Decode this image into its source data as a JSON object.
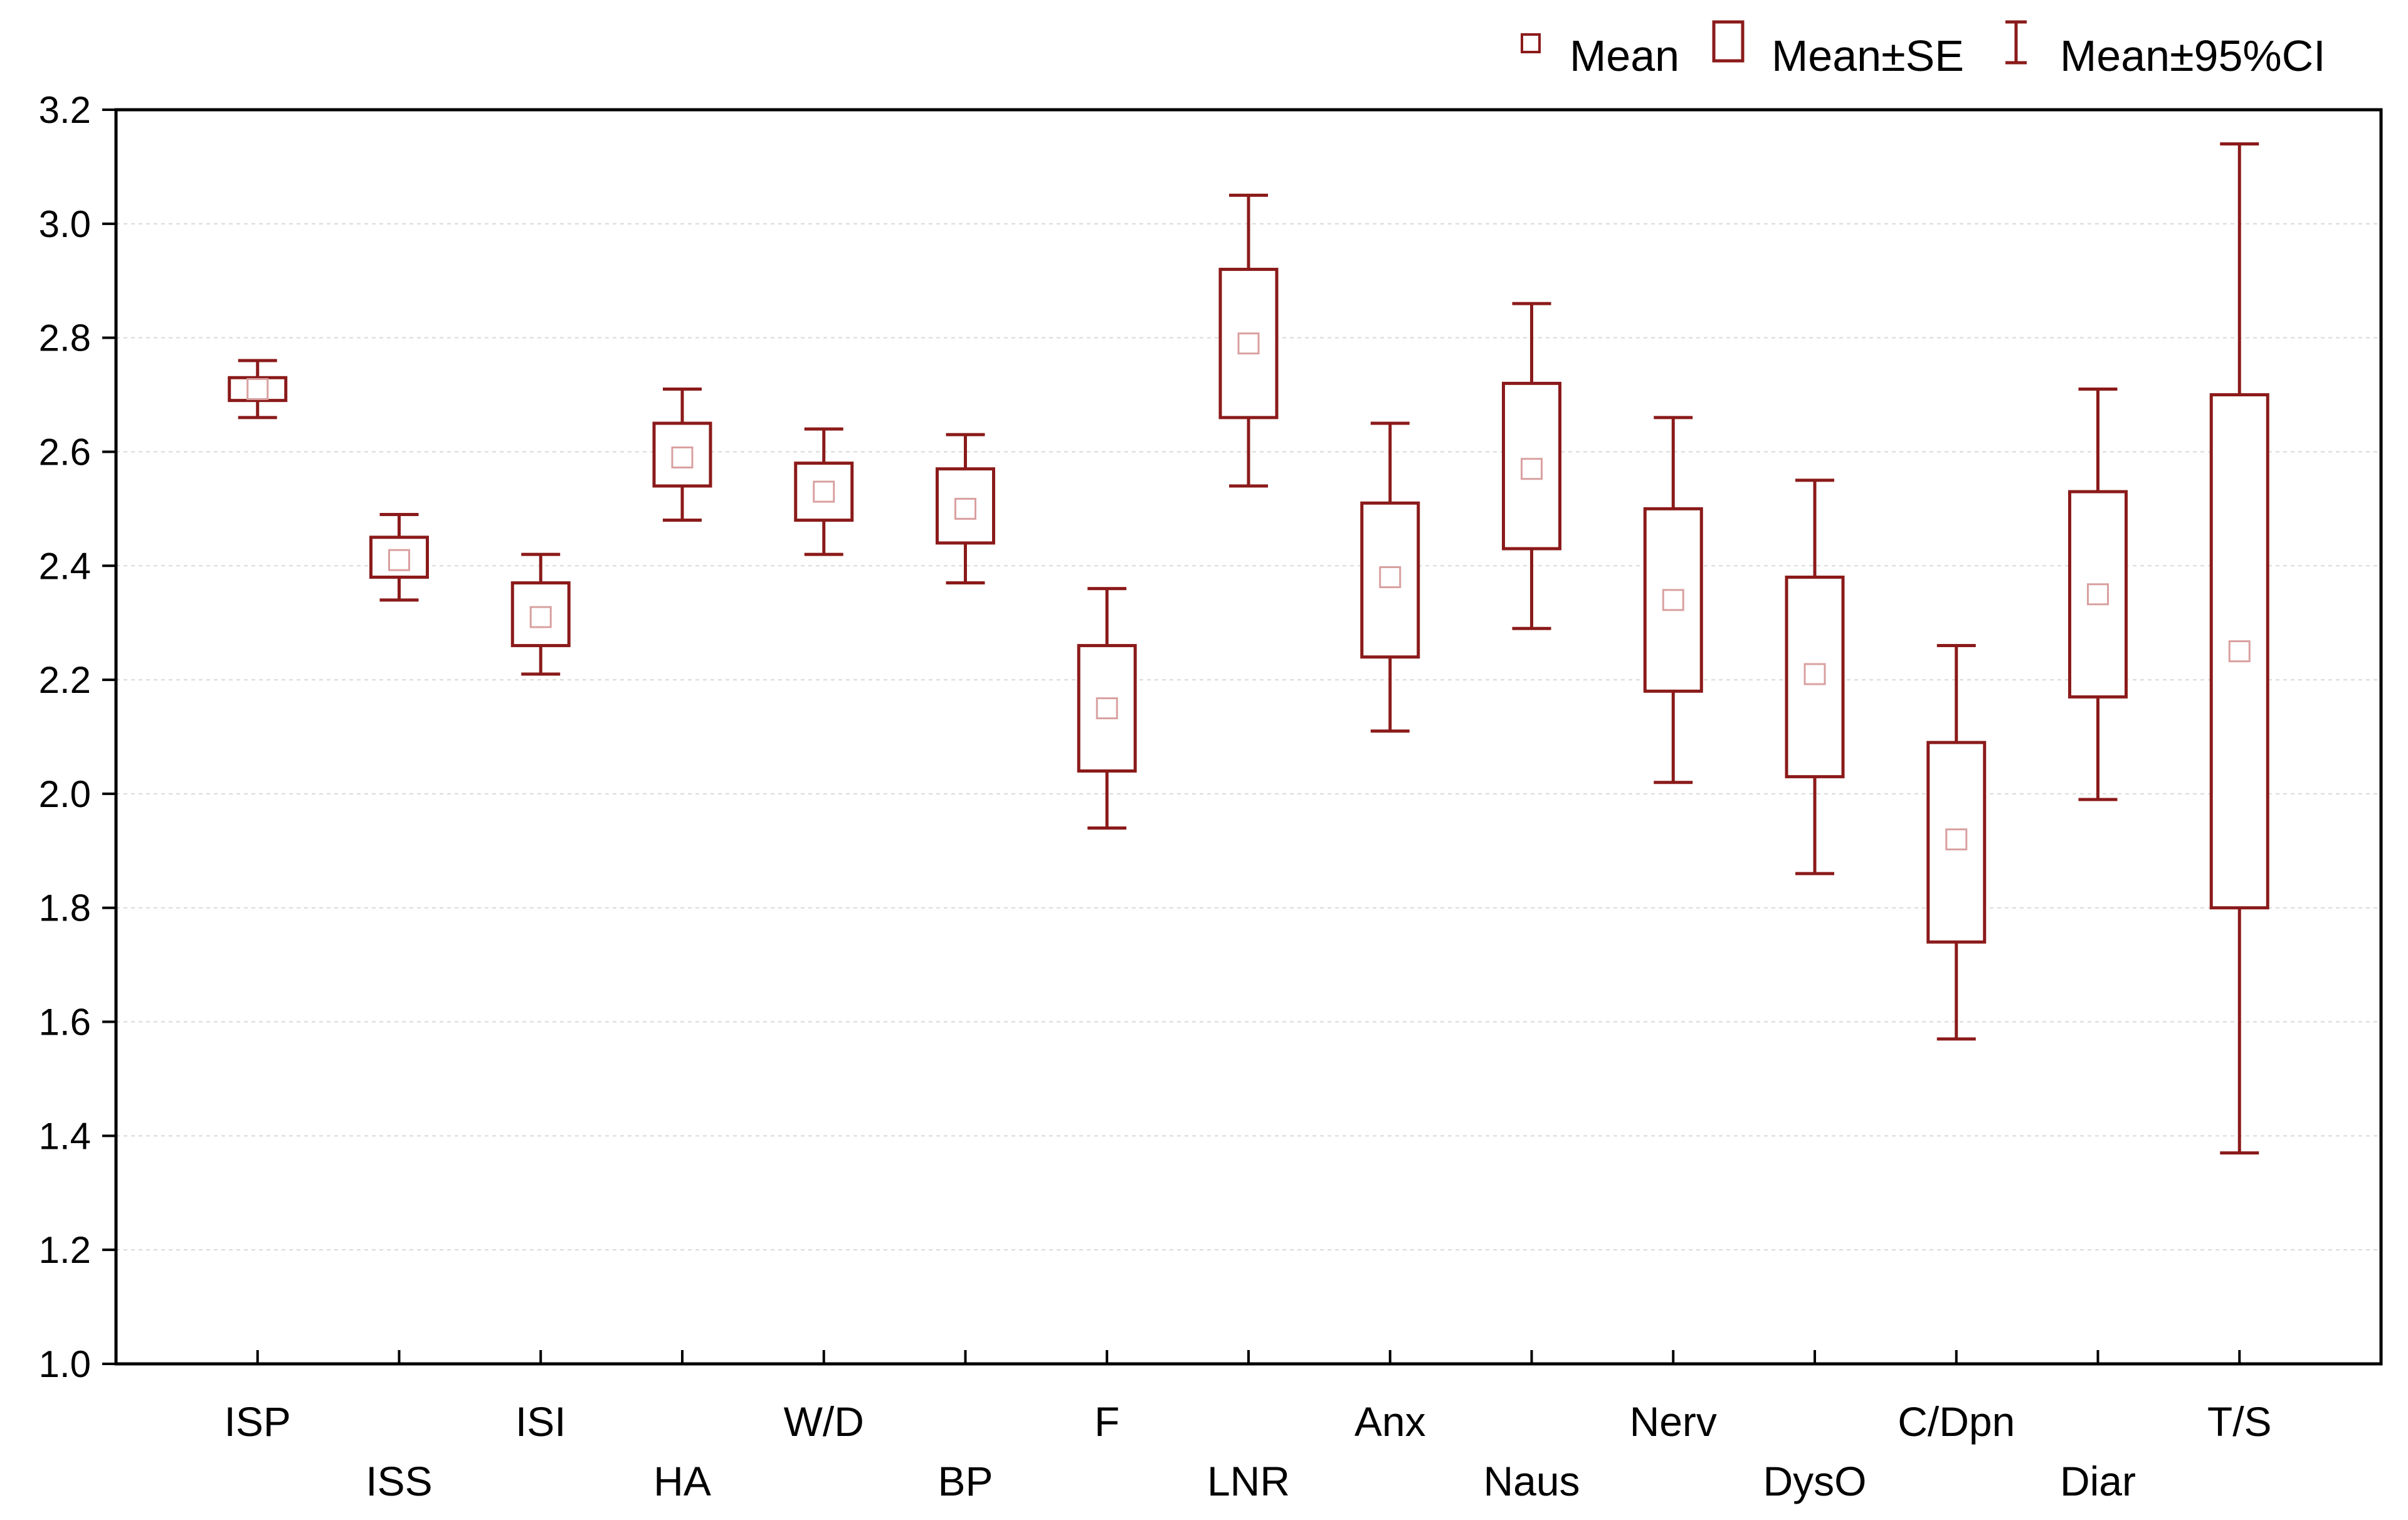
{
  "chart_data": {
    "type": "box",
    "title": "",
    "xlabel": "",
    "ylabel": "",
    "ylim": [
      1.0,
      3.2
    ],
    "yticks": [
      "1.0",
      "1.2",
      "1.4",
      "1.6",
      "1.8",
      "2.0",
      "2.2",
      "2.4",
      "2.6",
      "2.8",
      "3.0",
      "3.2"
    ],
    "grid": true,
    "legend_position": "top-right",
    "legend": [
      {
        "key": "mean",
        "label": "Mean"
      },
      {
        "key": "se",
        "label": "Mean±SE"
      },
      {
        "key": "ci",
        "label": "Mean±95%CI"
      }
    ],
    "colors": {
      "series": "#8b1a1a",
      "mean_marker": "#d9a0a0",
      "grid": "#d9d9d9",
      "axis": "#000000"
    },
    "categories": [
      "ISP",
      "ISS",
      "ISI",
      "HA",
      "W/D",
      "BP",
      "F",
      "LNR",
      "Anx",
      "Naus",
      "Nerv",
      "DysO",
      "C/Dpn",
      "Diar",
      "T/S"
    ],
    "label_row": [
      0,
      1,
      0,
      1,
      0,
      1,
      0,
      1,
      0,
      1,
      0,
      1,
      0,
      1,
      0
    ],
    "mean": [
      2.71,
      2.41,
      2.31,
      2.59,
      2.53,
      2.5,
      2.15,
      2.79,
      2.38,
      2.57,
      2.34,
      2.21,
      1.92,
      2.35,
      2.25
    ],
    "se_low": [
      2.69,
      2.38,
      2.26,
      2.54,
      2.48,
      2.44,
      2.04,
      2.66,
      2.24,
      2.43,
      2.18,
      2.03,
      1.74,
      2.17,
      1.8
    ],
    "se_high": [
      2.73,
      2.45,
      2.37,
      2.65,
      2.58,
      2.57,
      2.26,
      2.92,
      2.51,
      2.72,
      2.5,
      2.38,
      2.09,
      2.53,
      2.7
    ],
    "ci_low": [
      2.66,
      2.34,
      2.21,
      2.48,
      2.42,
      2.37,
      1.94,
      2.54,
      2.11,
      2.29,
      2.02,
      1.86,
      1.57,
      1.99,
      1.37
    ],
    "ci_high": [
      2.76,
      2.49,
      2.42,
      2.71,
      2.64,
      2.63,
      2.36,
      3.05,
      2.65,
      2.86,
      2.66,
      2.55,
      2.26,
      2.71,
      3.14
    ]
  }
}
